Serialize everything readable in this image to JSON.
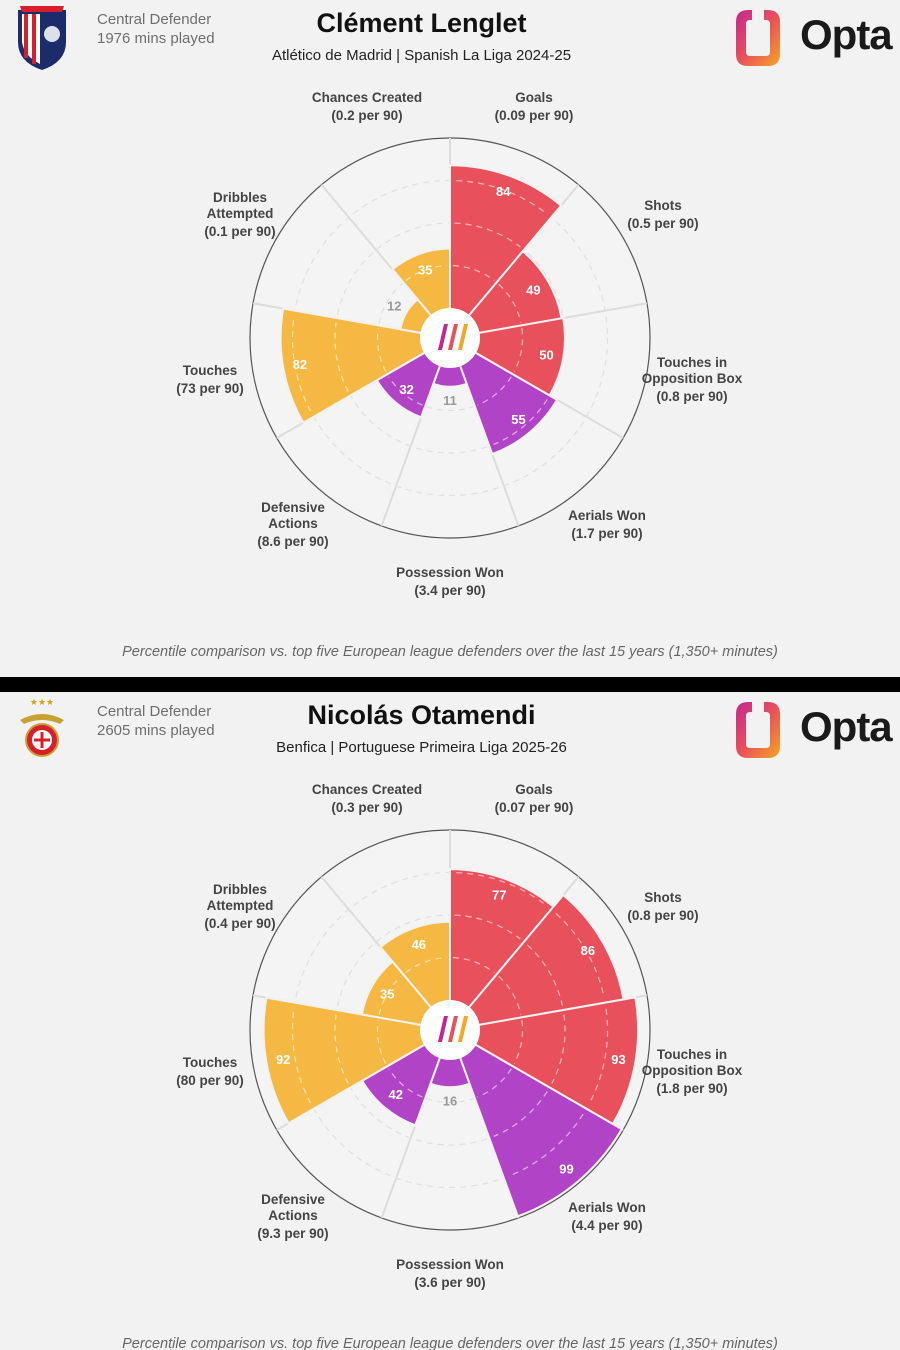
{
  "footnote": "Percentile comparison vs. top five European league defenders over the last 15 years (1,350+ minutes)",
  "brand": "Opta",
  "colors": {
    "attack": "#e8505b",
    "defence": "#b143c6",
    "possession": "#f5b843",
    "background": "#f2f2f2"
  },
  "players": [
    {
      "name": "Clément Lenglet",
      "role": "Central Defender",
      "minutes": "1976 mins played",
      "subtitle": "Atlético de Madrid | Spanish La Liga 2024-25",
      "badge_icon": "atletico-madrid-crest-icon"
    },
    {
      "name": "Nicolás Otamendi",
      "role": "Central Defender",
      "minutes": "2605 mins played",
      "subtitle": "Benfica | Portuguese Primeira Liga 2025-26",
      "badge_icon": "benfica-crest-icon"
    }
  ],
  "chart_data": [
    {
      "type": "radar",
      "scale": [
        0,
        100
      ],
      "categories": [
        {
          "label": [
            "Goals"
          ],
          "rate": "(0.09 per 90)",
          "group": "attack"
        },
        {
          "label": [
            "Shots"
          ],
          "rate": "(0.5 per 90)",
          "group": "attack"
        },
        {
          "label": [
            "Touches in",
            "Opposition Box"
          ],
          "rate": "(0.8 per 90)",
          "group": "attack"
        },
        {
          "label": [
            "Aerials Won"
          ],
          "rate": "(1.7 per 90)",
          "group": "defence"
        },
        {
          "label": [
            "Possession Won"
          ],
          "rate": "(3.4 per 90)",
          "group": "defence"
        },
        {
          "label": [
            "Defensive",
            "Actions"
          ],
          "rate": "(8.6 per 90)",
          "group": "defence"
        },
        {
          "label": [
            "Touches"
          ],
          "rate": "(73 per 90)",
          "group": "possession"
        },
        {
          "label": [
            "Dribbles",
            "Attempted"
          ],
          "rate": "(0.1 per 90)",
          "group": "possession"
        },
        {
          "label": [
            "Chances Created"
          ],
          "rate": "(0.2 per 90)",
          "group": "possession"
        }
      ],
      "values": [
        84,
        49,
        50,
        55,
        11,
        32,
        82,
        12,
        35
      ]
    },
    {
      "type": "radar",
      "scale": [
        0,
        100
      ],
      "categories": [
        {
          "label": [
            "Goals"
          ],
          "rate": "(0.07 per 90)",
          "group": "attack"
        },
        {
          "label": [
            "Shots"
          ],
          "rate": "(0.8 per 90)",
          "group": "attack"
        },
        {
          "label": [
            "Touches in",
            "Opposition Box"
          ],
          "rate": "(1.8 per 90)",
          "group": "attack"
        },
        {
          "label": [
            "Aerials Won"
          ],
          "rate": "(4.4 per 90)",
          "group": "defence"
        },
        {
          "label": [
            "Possession Won"
          ],
          "rate": "(3.6 per 90)",
          "group": "defence"
        },
        {
          "label": [
            "Defensive",
            "Actions"
          ],
          "rate": "(9.3 per 90)",
          "group": "defence"
        },
        {
          "label": [
            "Touches"
          ],
          "rate": "(80 per 90)",
          "group": "possession"
        },
        {
          "label": [
            "Dribbles",
            "Attempted"
          ],
          "rate": "(0.4 per 90)",
          "group": "possession"
        },
        {
          "label": [
            "Chances Created"
          ],
          "rate": "(0.3 per 90)",
          "group": "possession"
        }
      ],
      "values": [
        77,
        86,
        93,
        99,
        16,
        42,
        92,
        35,
        46
      ]
    }
  ]
}
